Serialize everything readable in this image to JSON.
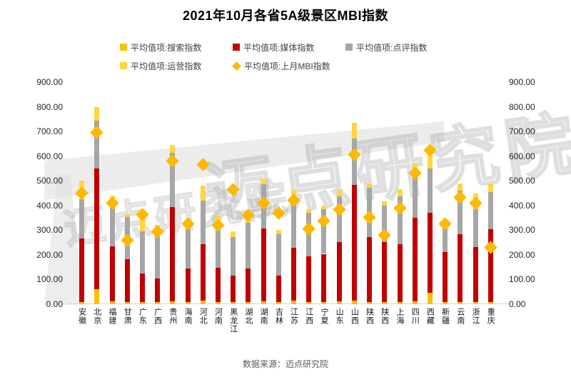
{
  "title": "2021年10月各省5A级景区MBI指数",
  "legend": {
    "items": [
      {
        "label": "平均值项:搜索指数",
        "shape": "square",
        "color": "#FFC000"
      },
      {
        "label": "平均值项:媒体指数",
        "shape": "square",
        "color": "#C00000"
      },
      {
        "label": "平均值项:点评指数",
        "shape": "square",
        "color": "#A6A6A6"
      },
      {
        "label": "平均值项:运营指数",
        "shape": "square",
        "color": "#FFD640"
      },
      {
        "label": "平均值项:上月MBI指数",
        "shape": "diamond",
        "color": "#FFB800"
      }
    ]
  },
  "watermark": {
    "text_large": "迈点研究院",
    "text_small": "迈点研究院"
  },
  "source_note": "数据来源：迈点研究院",
  "chart_data": {
    "type": "bar",
    "stacked": true,
    "grid": false,
    "legend_position": "top",
    "ylim": [
      0,
      900
    ],
    "y_ticks": [
      "0.00",
      "100.00",
      "200.00",
      "300.00",
      "400.00",
      "500.00",
      "600.00",
      "700.00",
      "800.00",
      "900.00"
    ],
    "categories": [
      "安徽",
      "北京",
      "福建",
      "甘肃",
      "广东",
      "广西",
      "贵州",
      "海南",
      "河北",
      "河南",
      "黑龙江",
      "湖北",
      "湖南",
      "吉林",
      "江苏",
      "江西",
      "宁夏",
      "山东",
      "山西",
      "陕西",
      "陕西",
      "上海",
      "四川",
      "西藏",
      "新疆",
      "云南",
      "浙江",
      "重庆"
    ],
    "series": [
      {
        "name": "平均值项:搜索指数",
        "color": "#FFC000",
        "values": [
          10,
          60,
          12,
          10,
          10,
          8,
          12,
          10,
          15,
          10,
          8,
          10,
          12,
          8,
          15,
          10,
          8,
          12,
          15,
          10,
          8,
          10,
          12,
          45,
          10,
          10,
          10,
          8
        ]
      },
      {
        "name": "平均值项:媒体指数",
        "color": "#C00000",
        "values": [
          255,
          490,
          222,
          173,
          115,
          95,
          382,
          136,
          228,
          138,
          107,
          136,
          295,
          107,
          215,
          185,
          196,
          240,
          467,
          263,
          243,
          232,
          338,
          325,
          200,
          275,
          222,
          297
        ]
      },
      {
        "name": "平均值项:点评指数",
        "color": "#A6A6A6",
        "values": [
          160,
          195,
          173,
          170,
          170,
          175,
          220,
          158,
          178,
          172,
          158,
          185,
          180,
          170,
          205,
          175,
          180,
          185,
          188,
          200,
          148,
          196,
          185,
          180,
          105,
          175,
          152,
          148
        ]
      },
      {
        "name": "平均值项:运营指数",
        "color": "#FFD640",
        "values": [
          75,
          55,
          33,
          12,
          50,
          42,
          31,
          32,
          58,
          38,
          21,
          34,
          21,
          17,
          27,
          15,
          16,
          28,
          65,
          17,
          18,
          27,
          37,
          52,
          30,
          30,
          66,
          36
        ]
      }
    ],
    "marker_series": {
      "name": "平均值项:上月MBI指数",
      "shape": "diamond",
      "color": "#FFB800",
      "values": [
        450,
        695,
        410,
        258,
        363,
        295,
        580,
        325,
        565,
        320,
        465,
        360,
        410,
        368,
        420,
        305,
        336,
        382,
        605,
        353,
        280,
        390,
        530,
        625,
        326,
        433,
        410,
        230
      ]
    }
  }
}
